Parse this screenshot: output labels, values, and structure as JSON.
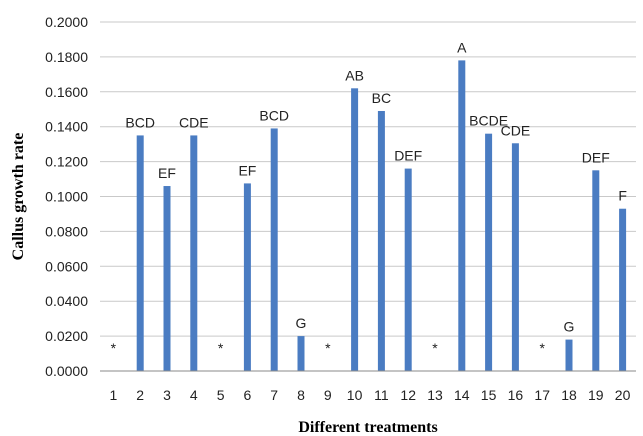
{
  "chart_data": {
    "type": "bar",
    "xlabel": "Different treatments",
    "ylabel": "Callus growth rate",
    "ylim": [
      0,
      0.2
    ],
    "yticks": [
      "0.0000",
      "0.0200",
      "0.0400",
      "0.0600",
      "0.0800",
      "0.1000",
      "0.1200",
      "0.1400",
      "0.1600",
      "0.1800",
      "0.2000"
    ],
    "grid": true,
    "bar_color": "#4a7cc2",
    "grid_color": "#c9c9c9",
    "categories": [
      "1",
      "2",
      "3",
      "4",
      "5",
      "6",
      "7",
      "8",
      "9",
      "10",
      "11",
      "12",
      "13",
      "14",
      "15",
      "16",
      "17",
      "18",
      "19",
      "20"
    ],
    "values": [
      0,
      0.135,
      0.106,
      0.135,
      0,
      0.1075,
      0.139,
      0.02,
      0,
      0.162,
      0.149,
      0.116,
      0,
      0.178,
      0.136,
      0.1305,
      0,
      0.018,
      0.115,
      0.093
    ],
    "labels": [
      "*",
      "BCD",
      "EF",
      "CDE",
      "*",
      "EF",
      "BCD",
      "G",
      "*",
      "AB",
      "BC",
      "DEF",
      "*",
      "A",
      "BCDE",
      "CDE",
      "*",
      "G",
      "DEF",
      "F"
    ]
  }
}
